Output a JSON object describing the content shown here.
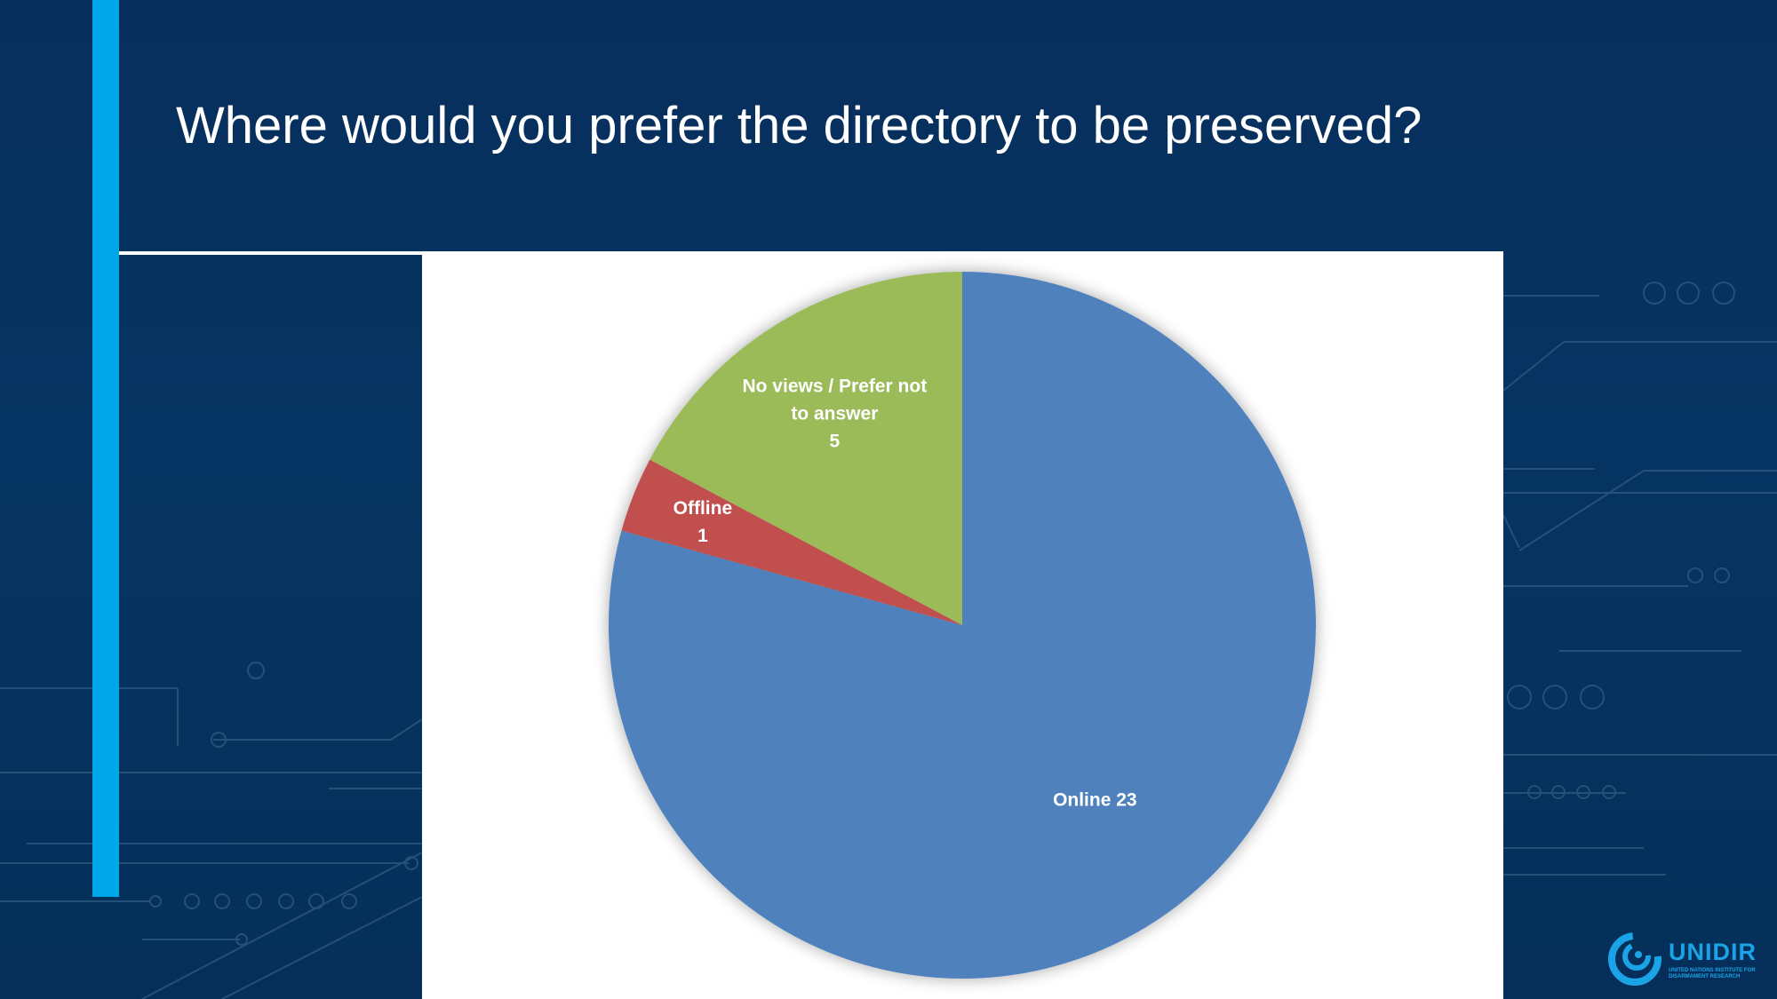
{
  "slide": {
    "title": "Where would you prefer the directory to be preserved?",
    "logo": {
      "name": "UNIDIR",
      "subtitle": "UNITED NATIONS INSTITUTE FOR DISARMAMENT RESEARCH"
    },
    "colors": {
      "background": "#062c55",
      "accent": "#00a7e8",
      "logo": "#1aa3e6"
    }
  },
  "chart_data": {
    "type": "pie",
    "title": "Where would you prefer the directory to be preserved?",
    "start_angle": "12 o'clock, clockwise",
    "slices": [
      {
        "category": "Online",
        "value": 23,
        "color": "#4f81bd",
        "label_lines": [
          "Online 23"
        ]
      },
      {
        "category": "Offline",
        "value": 1,
        "color": "#c0504d",
        "label_lines": [
          "Offline",
          "1"
        ]
      },
      {
        "category": "No views / Prefer not to answer",
        "value": 5,
        "color": "#9bbb59",
        "label_lines": [
          "No views / Prefer not",
          "to answer",
          "5"
        ]
      }
    ]
  }
}
